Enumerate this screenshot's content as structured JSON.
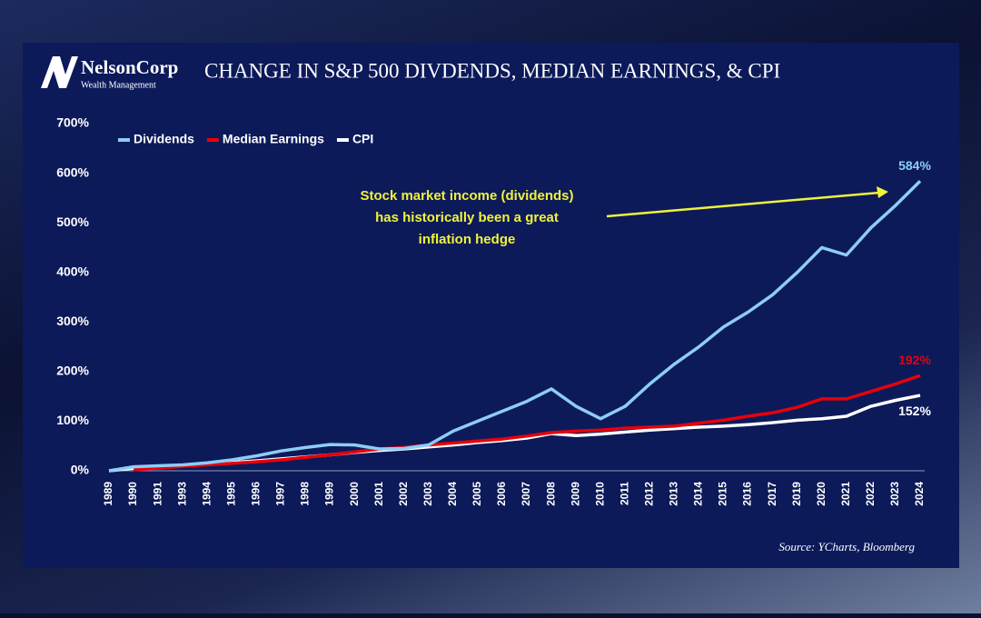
{
  "header": {
    "logo": "NelsonCorp",
    "logo_sub": "Wealth Management",
    "title": "CHANGE IN S&P 500 DIVDENDS, MEDIAN EARNINGS, & CPI"
  },
  "chart_data": {
    "type": "line",
    "categories": [
      "1989",
      "1990",
      "1991",
      "1993",
      "1994",
      "1995",
      "1996",
      "1997",
      "1998",
      "1999",
      "2000",
      "2001",
      "2002",
      "2003",
      "2004",
      "2005",
      "2006",
      "2007",
      "2008",
      "2009",
      "2010",
      "2011",
      "2012",
      "2013",
      "2014",
      "2015",
      "2016",
      "2017",
      "2019",
      "2020",
      "2021",
      "2022",
      "2023",
      "2024"
    ],
    "series": [
      {
        "name": "Dividends",
        "color": "#8ecdf5",
        "values": [
          0,
          8,
          10,
          12,
          16,
          22,
          30,
          40,
          47,
          53,
          52,
          44,
          45,
          52,
          80,
          100,
          120,
          140,
          165,
          130,
          105,
          130,
          175,
          215,
          250,
          290,
          320,
          355,
          400,
          450,
          435,
          490,
          535,
          584
        ],
        "value_labels": [
          null,
          null,
          null,
          null,
          null,
          null,
          null,
          null,
          null,
          null,
          null,
          null,
          null,
          null,
          null,
          null,
          null,
          null,
          null,
          null,
          null,
          null,
          null,
          null,
          null,
          null,
          null,
          null,
          null,
          null,
          null,
          null,
          null,
          "584%"
        ]
      },
      {
        "name": "Median Earnings",
        "color": "#e8000b",
        "values": [
          null,
          2,
          5,
          9,
          12,
          15,
          18,
          22,
          27,
          32,
          38,
          44,
          47,
          52,
          56,
          60,
          64,
          70,
          77,
          80,
          82,
          86,
          88,
          90,
          96,
          102,
          110,
          117,
          128,
          145,
          145,
          160,
          175,
          192
        ],
        "value_labels": [
          null,
          null,
          null,
          null,
          null,
          null,
          null,
          null,
          null,
          null,
          null,
          null,
          null,
          null,
          null,
          null,
          null,
          null,
          null,
          null,
          null,
          null,
          null,
          null,
          null,
          null,
          null,
          null,
          null,
          null,
          null,
          null,
          null,
          "192%"
        ]
      },
      {
        "name": "CPI",
        "color": "#ffffff",
        "values": [
          0,
          5,
          8,
          11,
          14,
          17,
          20,
          24,
          28,
          32,
          37,
          41,
          44,
          48,
          52,
          57,
          61,
          66,
          75,
          71,
          74,
          78,
          82,
          85,
          88,
          90,
          93,
          97,
          102,
          105,
          110,
          130,
          142,
          152
        ],
        "value_labels": [
          null,
          null,
          null,
          null,
          null,
          null,
          null,
          null,
          null,
          null,
          null,
          null,
          null,
          null,
          null,
          null,
          null,
          null,
          null,
          null,
          null,
          null,
          null,
          null,
          null,
          null,
          null,
          null,
          null,
          null,
          null,
          null,
          null,
          "152%"
        ]
      }
    ],
    "ylim": [
      0,
      700
    ],
    "yticks": [
      {
        "value": 0,
        "label": "0%"
      },
      {
        "value": 100,
        "label": "100%"
      },
      {
        "value": 200,
        "label": "200%"
      },
      {
        "value": 300,
        "label": "300%"
      },
      {
        "value": 400,
        "label": "400%"
      },
      {
        "value": 500,
        "label": "500%"
      },
      {
        "value": 600,
        "label": "600%"
      },
      {
        "value": 700,
        "label": "700%"
      }
    ],
    "annotation": [
      "Stock market income (dividends)",
      "has historically been a great",
      "inflation hedge"
    ],
    "source": "Source: YCharts, Bloomberg"
  }
}
